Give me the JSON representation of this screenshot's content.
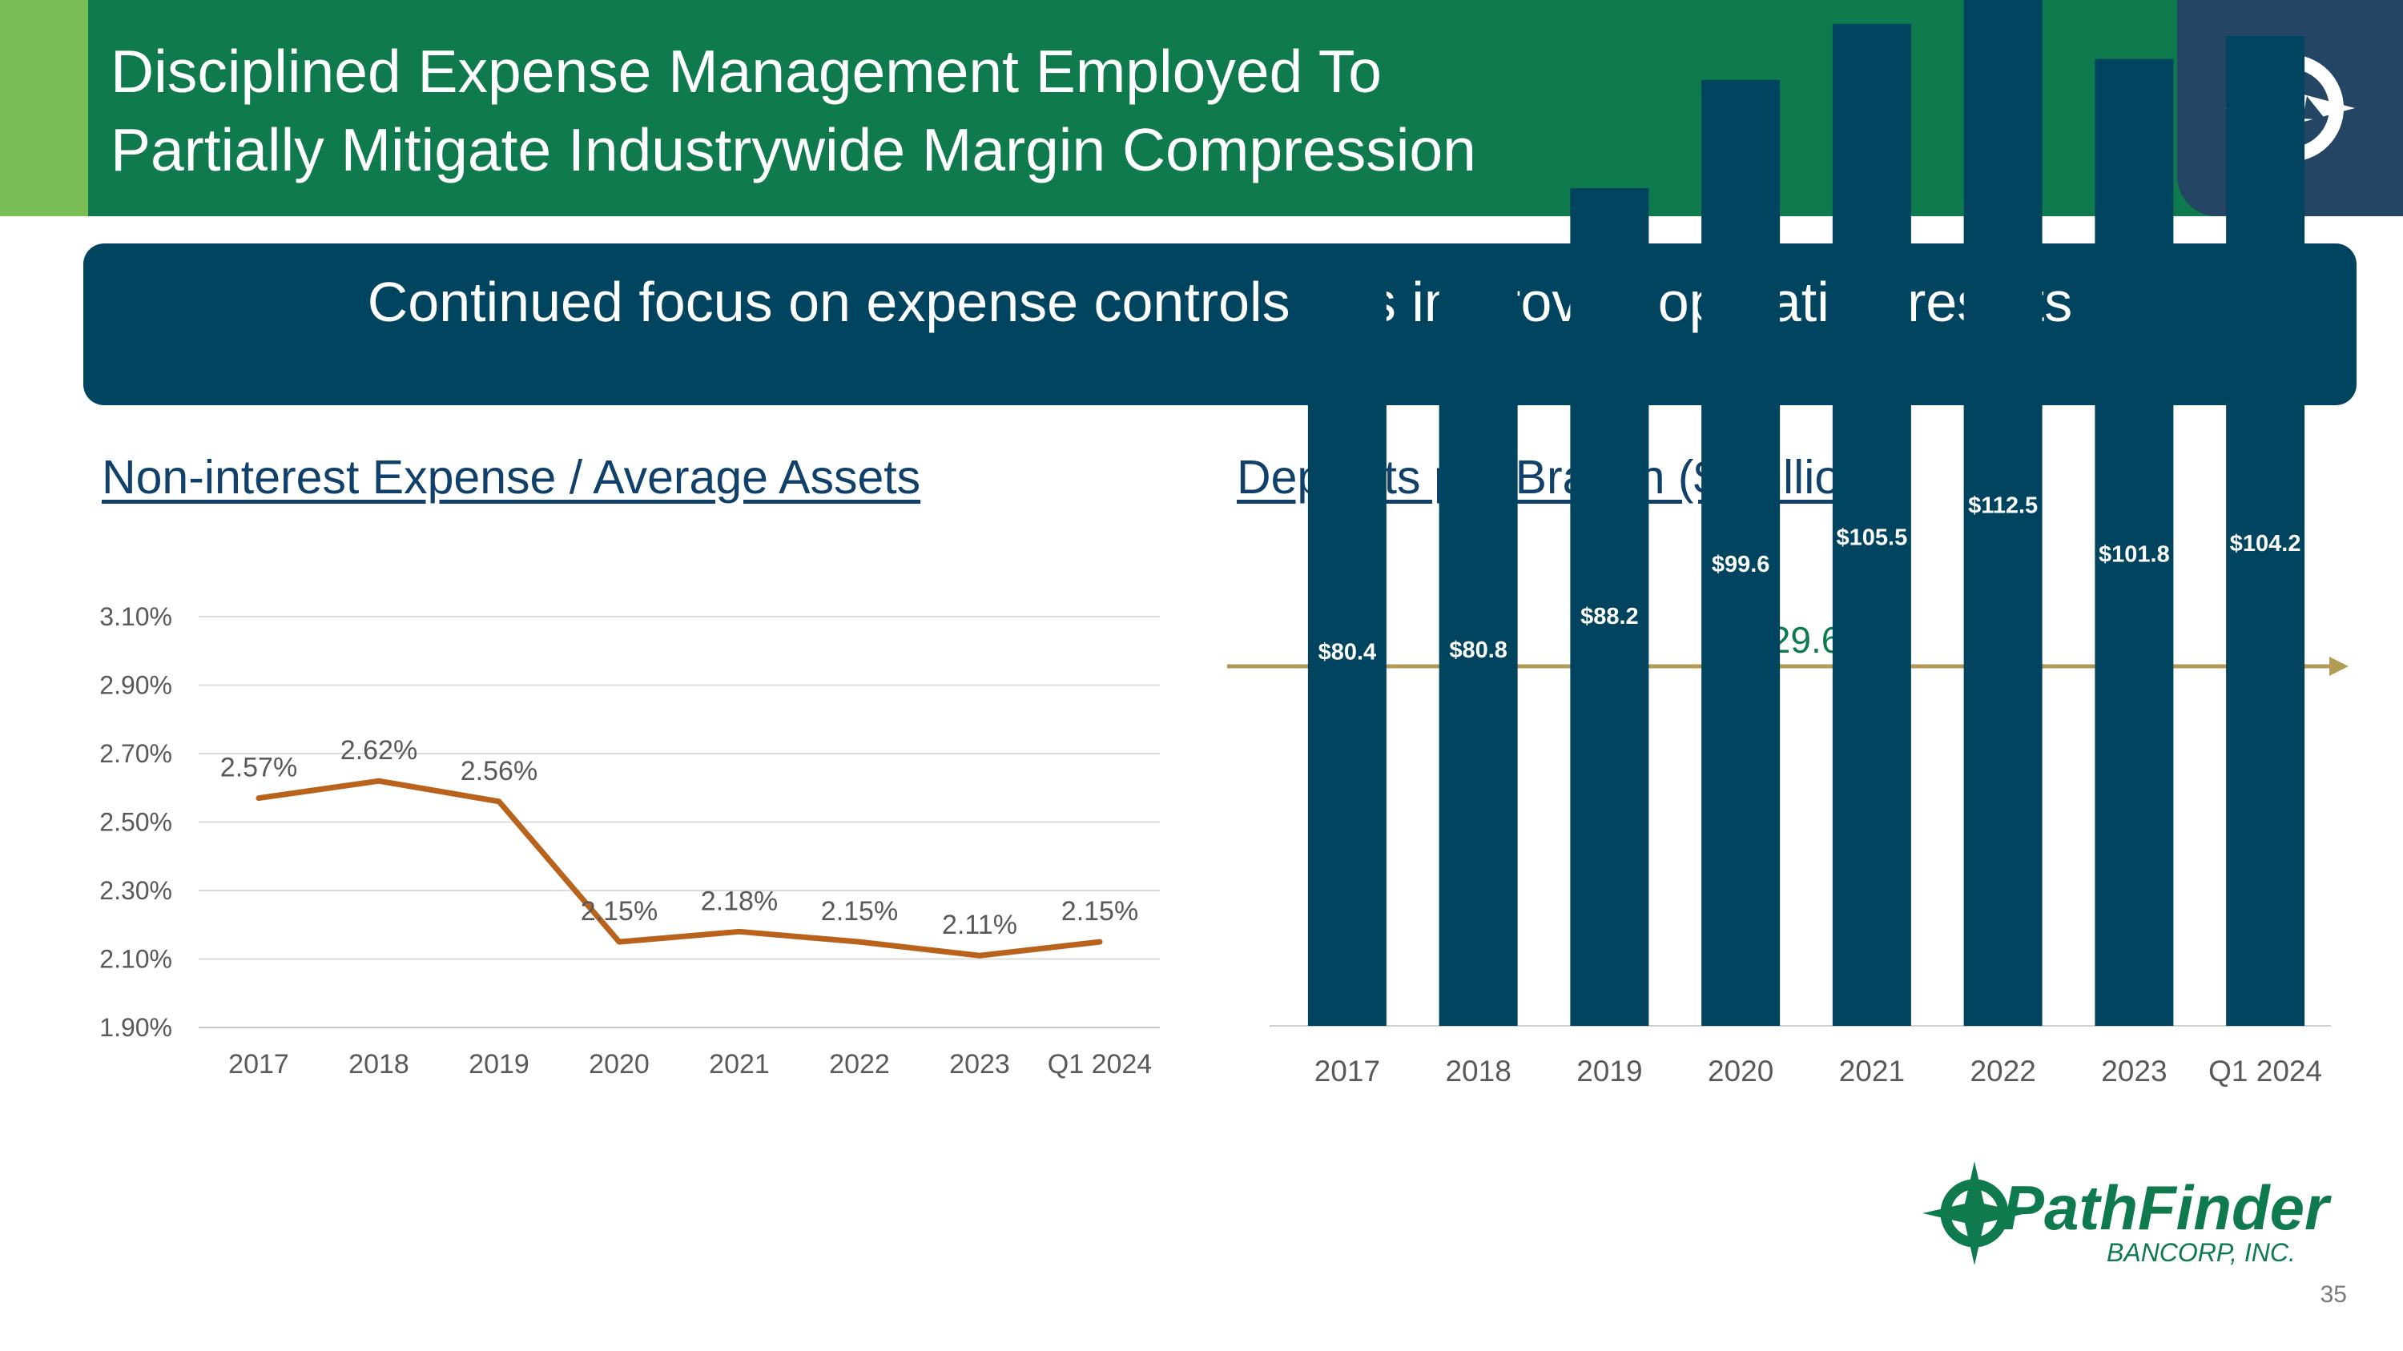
{
  "header": {
    "title": "Disciplined Expense Management Employed To\nPartially Mitigate Industrywide Margin Compression"
  },
  "banner": {
    "text": "Continued focus on expense controls has improved operating results"
  },
  "left_section": {
    "title": "Non-interest Expense / Average Assets"
  },
  "right_section": {
    "title": "Deposits per Branch ($ millions)"
  },
  "colors": {
    "header_green": "#0e7a4e",
    "header_accent": "#79bf55",
    "banner_navy": "#00445f",
    "line_orange": "#b8621b",
    "bar_navy": "#00445f",
    "arrow_gold": "#b39a55",
    "growth_green": "#0e7a4e",
    "title_blue": "#11406b"
  },
  "icons": {
    "header_logo": "compass-star-icon",
    "brand_logo": "pathfinder-compass-icon"
  },
  "brand": {
    "name": "PathFinder",
    "sub": "BANCORP, INC."
  },
  "page_number": "35",
  "chart_data": [
    {
      "type": "line",
      "categories": [
        "2017",
        "2018",
        "2019",
        "2020",
        "2021",
        "2022",
        "2023",
        "Q1 2024"
      ],
      "values": [
        2.57,
        2.62,
        2.56,
        2.15,
        2.18,
        2.15,
        2.11,
        2.15
      ],
      "data_labels": [
        "2.57%",
        "2.62%",
        "2.56%",
        "2.15%",
        "2.18%",
        "2.15%",
        "2.11%",
        "2.15%"
      ],
      "ylim": [
        1.9,
        3.1
      ],
      "yticks": [
        1.9,
        2.1,
        2.3,
        2.5,
        2.7,
        2.9,
        3.1
      ],
      "ytick_labels": [
        "1.90%",
        "2.10%",
        "2.30%",
        "2.50%",
        "2.70%",
        "2.90%",
        "3.10%"
      ],
      "grid": true,
      "legend": "none"
    },
    {
      "type": "bar",
      "categories": [
        "2017",
        "2018",
        "2019",
        "2020",
        "2021",
        "2022",
        "2023",
        "Q1 2024"
      ],
      "values": [
        80.4,
        80.8,
        88.2,
        99.6,
        105.5,
        112.5,
        101.8,
        104.2
      ],
      "data_labels": [
        "$80.4",
        "$80.8",
        "$88.2",
        "$99.6",
        "$105.5",
        "$112.5",
        "$101.8",
        "$104.2"
      ],
      "ylim": [
        0,
        120
      ],
      "annotation": "29.6%",
      "grid": false,
      "legend": "none"
    }
  ]
}
